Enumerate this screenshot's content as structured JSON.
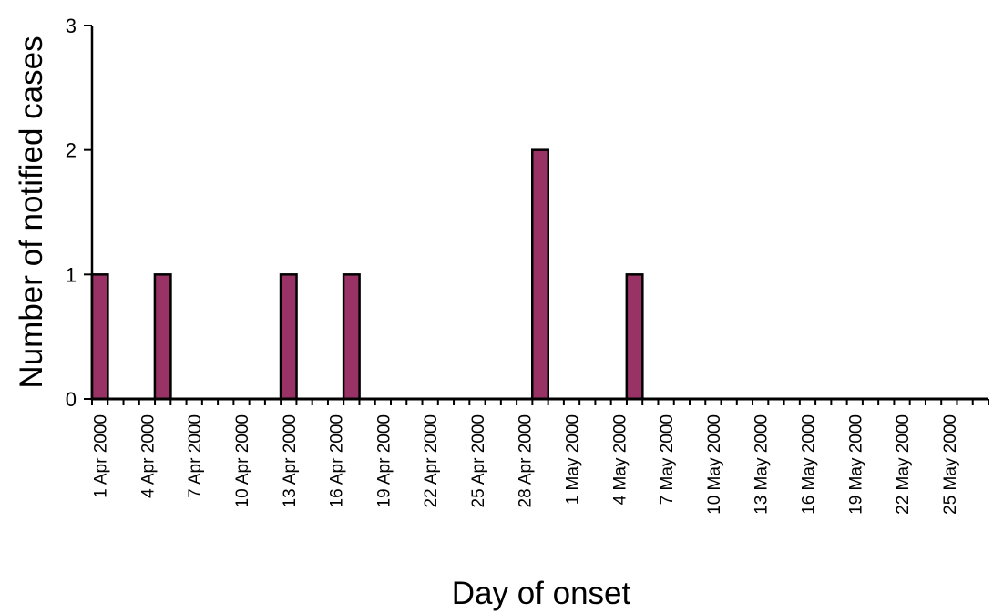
{
  "chart_data": {
    "type": "bar",
    "title": "",
    "xlabel": "Day of onset",
    "ylabel": "Number of notified cases",
    "ylim": [
      0,
      3
    ],
    "yticks": [
      "0",
      "1",
      "2",
      "3"
    ],
    "grid": false,
    "legend": "none",
    "bar_color": "#993366",
    "x_start": "1 Apr 2000",
    "x_end": "27 May 2000",
    "x_tick_labels": [
      "1 Apr 2000",
      "4 Apr 2000",
      "7 Apr 2000",
      "10 Apr 2000",
      "13 Apr 2000",
      "16 Apr 2000",
      "19 Apr 2000",
      "22 Apr 2000",
      "25 Apr 2000",
      "28 Apr 2000",
      "1 May 2000",
      "4 May 2000",
      "7 May 2000",
      "10 May 2000",
      "13 May 2000",
      "16 May 2000",
      "19 May 2000",
      "22 May 2000",
      "25 May 2000"
    ],
    "categories": [
      "1 Apr 2000",
      "2 Apr 2000",
      "3 Apr 2000",
      "4 Apr 2000",
      "5 Apr 2000",
      "6 Apr 2000",
      "7 Apr 2000",
      "8 Apr 2000",
      "9 Apr 2000",
      "10 Apr 2000",
      "11 Apr 2000",
      "12 Apr 2000",
      "13 Apr 2000",
      "14 Apr 2000",
      "15 Apr 2000",
      "16 Apr 2000",
      "17 Apr 2000",
      "18 Apr 2000",
      "19 Apr 2000",
      "20 Apr 2000",
      "21 Apr 2000",
      "22 Apr 2000",
      "23 Apr 2000",
      "24 Apr 2000",
      "25 Apr 2000",
      "26 Apr 2000",
      "27 Apr 2000",
      "28 Apr 2000",
      "29 Apr 2000",
      "30 Apr 2000",
      "1 May 2000",
      "2 May 2000",
      "3 May 2000",
      "4 May 2000",
      "5 May 2000",
      "6 May 2000",
      "7 May 2000",
      "8 May 2000",
      "9 May 2000",
      "10 May 2000",
      "11 May 2000",
      "12 May 2000",
      "13 May 2000",
      "14 May 2000",
      "15 May 2000",
      "16 May 2000",
      "17 May 2000",
      "18 May 2000",
      "19 May 2000",
      "20 May 2000",
      "21 May 2000",
      "22 May 2000",
      "23 May 2000",
      "24 May 2000",
      "25 May 2000",
      "26 May 2000",
      "27 May 2000"
    ],
    "values": [
      1,
      0,
      0,
      0,
      1,
      0,
      0,
      0,
      0,
      0,
      0,
      0,
      1,
      0,
      0,
      0,
      1,
      0,
      0,
      0,
      0,
      0,
      0,
      0,
      0,
      0,
      0,
      0,
      2,
      0,
      0,
      0,
      0,
      0,
      1,
      0,
      0,
      0,
      0,
      0,
      0,
      0,
      0,
      0,
      0,
      0,
      0,
      0,
      0,
      0,
      0,
      0,
      0,
      0,
      0,
      0,
      0
    ]
  }
}
